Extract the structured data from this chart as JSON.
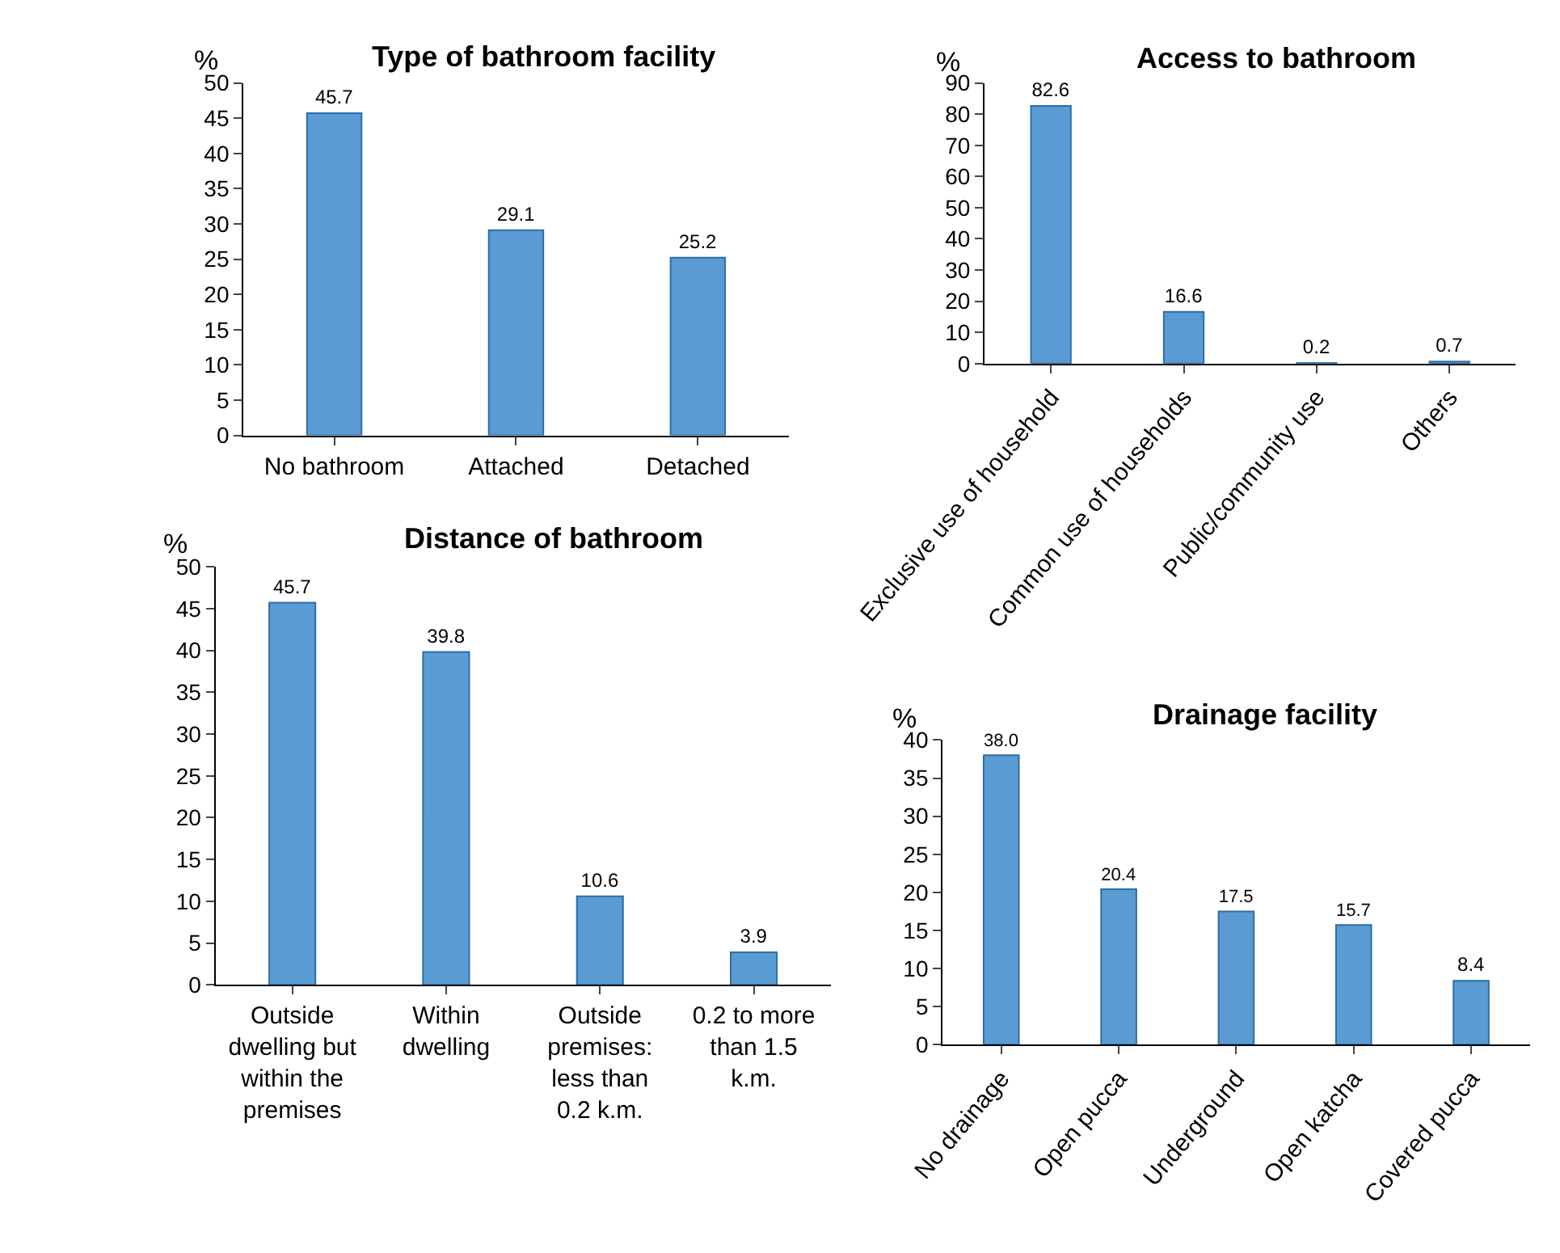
{
  "chart_data": [
    {
      "type": "bar",
      "title": "Type of bathroom facility",
      "ylabel": "%",
      "categories": [
        "No bathroom",
        "Attached",
        "Detached"
      ],
      "values": [
        45.7,
        29.1,
        25.2
      ],
      "color": "#5b9bd5",
      "ylim": [
        0,
        50
      ],
      "yticks": [
        0,
        5,
        10,
        15,
        20,
        25,
        30,
        35,
        40,
        45,
        50
      ],
      "data_labels": true
    },
    {
      "type": "bar",
      "title": "Access to bathroom",
      "ylabel": "%",
      "categories": [
        "Exclusive use of household",
        "Common use of households",
        "Public/community use",
        "Others"
      ],
      "values": [
        82.6,
        16.6,
        0.2,
        0.7
      ],
      "color": "#5b9bd5",
      "ylim": [
        0,
        90
      ],
      "yticks": [
        0,
        10,
        20,
        30,
        40,
        50,
        60,
        70,
        80,
        90
      ],
      "data_labels": true
    },
    {
      "type": "bar",
      "title": "Distance of bathroom",
      "ylabel": "%",
      "categories": [
        "Outside dwelling but within the premises",
        "Within dwelling",
        "Outside premises: less than 0.2 k.m.",
        "0.2 to more than 1.5 k.m."
      ],
      "values": [
        45.7,
        39.8,
        10.6,
        3.9
      ],
      "color": "#5b9bd5",
      "ylim": [
        0,
        50
      ],
      "yticks": [
        0,
        5,
        10,
        15,
        20,
        25,
        30,
        35,
        40,
        45,
        50
      ],
      "data_labels": true
    },
    {
      "type": "bar",
      "title": "Drainage facility",
      "ylabel": "%",
      "categories": [
        "No drainage",
        "Open pucca",
        "Underground",
        "Open katcha",
        "Covered pucca"
      ],
      "values": [
        38.0,
        20.4,
        17.5,
        15.7,
        8.4
      ],
      "value_labels": [
        "38.0",
        "20.4",
        "17.5",
        "15.7",
        "8.4"
      ],
      "color": "#5b9bd5",
      "ylim": [
        0,
        40
      ],
      "yticks": [
        0,
        5,
        10,
        15,
        20,
        25,
        30,
        35,
        40
      ]
    }
  ]
}
